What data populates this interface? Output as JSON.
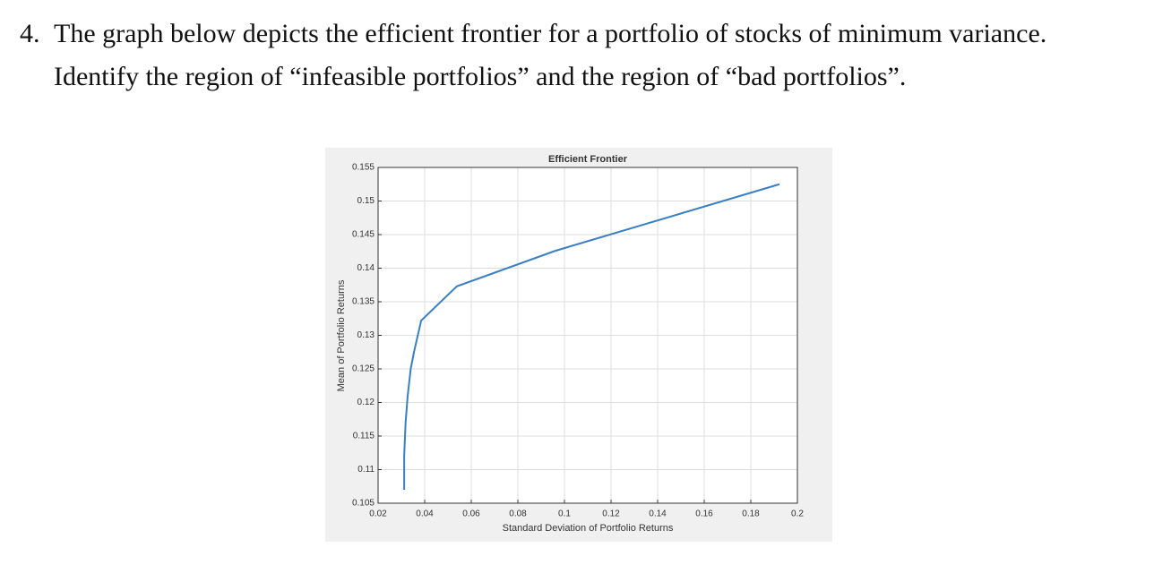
{
  "question": {
    "number": "4.",
    "lines": [
      "The graph below depicts the efficient frontier for a portfolio of stocks of minimum variance.",
      "Identify the region of “infeasible portfolios” and the region of “bad portfolios”."
    ]
  },
  "chart_data": {
    "type": "line",
    "title": "Efficient Frontier",
    "x_label": "Standard Deviation of Portfolio Returns",
    "y_label": "Mean of Portfolio Returns",
    "x": [
      0.0312,
      0.0312,
      0.0318,
      0.0327,
      0.034,
      0.0354,
      0.0385,
      0.0538,
      0.0962,
      0.1923
    ],
    "series": [
      {
        "color": "#3a7fc4",
        "values": [
          0.107,
          0.112,
          0.117,
          0.121,
          0.125,
          0.1275,
          0.1322,
          0.1373,
          0.1426,
          0.1525
        ]
      }
    ],
    "xlim": [
      0.02,
      0.2
    ],
    "ylim": [
      0.105,
      0.155
    ],
    "xticks": [
      0.02,
      0.04,
      0.06,
      0.08,
      0.1,
      0.12,
      0.14,
      0.16,
      0.18,
      0.2
    ],
    "yticks": [
      0.105,
      0.11,
      0.115,
      0.12,
      0.125,
      0.13,
      0.135,
      0.14,
      0.145,
      0.15,
      0.155
    ],
    "grid": true
  }
}
